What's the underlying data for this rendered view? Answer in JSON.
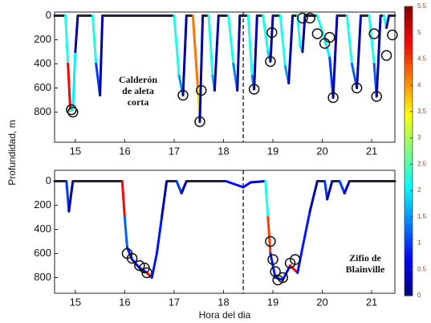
{
  "chart_data": [
    {
      "type": "line",
      "y_label": "Profundidad, m",
      "colormap": "jet",
      "xlim": [
        14.58,
        21.47
      ],
      "xticks": [
        15,
        16,
        17,
        18,
        19,
        20,
        21
      ],
      "ylim": [
        -30,
        1050
      ],
      "yticks": [
        0,
        200,
        400,
        600,
        800
      ],
      "y_inverted": true,
      "vlines": [
        18.4
      ],
      "annotation": [
        "Calderón",
        "de aleta",
        "corta"
      ],
      "x": [
        14.58,
        14.8,
        14.85,
        14.9,
        14.95,
        15.0,
        15.05,
        15.35,
        15.42,
        15.5,
        15.55,
        17.0,
        17.1,
        17.18,
        17.25,
        17.38,
        17.48,
        17.52,
        17.58,
        17.7,
        17.78,
        17.82,
        17.9,
        18.1,
        18.2,
        18.28,
        18.33,
        18.5,
        18.58,
        18.62,
        18.68,
        18.8,
        18.9,
        18.95,
        19.0,
        19.15,
        19.25,
        19.32,
        19.4,
        19.5,
        19.55,
        19.6,
        19.65,
        19.9,
        20.05,
        20.15,
        20.22,
        20.3,
        20.5,
        20.6,
        20.7,
        20.78,
        20.95,
        21.05,
        21.1,
        21.18,
        21.25,
        21.3,
        21.35,
        21.47
      ],
      "values": [
        0,
        0,
        400,
        790,
        780,
        300,
        0,
        0,
        400,
        660,
        0,
        0,
        500,
        660,
        0,
        0,
        600,
        880,
        0,
        0,
        500,
        620,
        0,
        0,
        400,
        620,
        0,
        0,
        500,
        610,
        0,
        0,
        300,
        380,
        0,
        0,
        420,
        560,
        0,
        0,
        250,
        300,
        0,
        0,
        200,
        350,
        680,
        0,
        0,
        400,
        600,
        0,
        0,
        400,
        670,
        0,
        0,
        100,
        0,
        0
      ],
      "color_values": [
        0.2,
        0.2,
        2.2,
        4.8,
        2.5,
        2.0,
        0.2,
        0.2,
        2.2,
        1.0,
        0.2,
        0.2,
        2.2,
        1.5,
        0.2,
        0.2,
        4.2,
        3.6,
        0.2,
        0.2,
        2.2,
        1.6,
        0.2,
        0.2,
        2.2,
        1.4,
        0.2,
        0.2,
        2.2,
        1.4,
        0.2,
        0.2,
        2.2,
        1.8,
        0.2,
        0.2,
        2.2,
        1.5,
        0.2,
        0.2,
        2.2,
        2.0,
        0.2,
        0.2,
        2.2,
        2.0,
        1.0,
        0.2,
        0.2,
        2.2,
        1.2,
        0.2,
        0.2,
        2.2,
        1.2,
        0.2,
        0.2,
        2.2,
        0.2,
        0.2
      ],
      "markers": {
        "x": [
          14.92,
          14.95,
          17.18,
          17.52,
          17.55,
          18.62,
          18.95,
          18.98,
          19.6,
          19.75,
          19.9,
          20.05,
          20.15,
          20.22,
          20.7,
          21.05,
          21.1,
          21.3,
          21.42
        ],
        "values": [
          780,
          800,
          660,
          880,
          620,
          610,
          380,
          140,
          20,
          20,
          150,
          230,
          180,
          680,
          600,
          150,
          670,
          330,
          160
        ]
      }
    },
    {
      "type": "line",
      "x_label": "Hora del dia",
      "colormap": "jet",
      "xlim": [
        14.58,
        21.47
      ],
      "xticks": [
        15,
        16,
        17,
        18,
        19,
        20,
        21
      ],
      "ylim": [
        -90,
        930
      ],
      "yticks": [
        0,
        200,
        400,
        600,
        800
      ],
      "y_inverted": true,
      "vlines": [
        18.4
      ],
      "annotation": [
        "Zifio de",
        "Blainville"
      ],
      "x": [
        14.58,
        14.82,
        14.87,
        14.95,
        15.95,
        16.0,
        16.05,
        16.15,
        16.3,
        16.45,
        16.55,
        16.65,
        16.75,
        16.85,
        17.05,
        17.15,
        17.25,
        18.05,
        18.4,
        18.55,
        18.85,
        18.9,
        18.95,
        19.05,
        19.2,
        19.35,
        19.5,
        19.6,
        19.75,
        19.9,
        20.05,
        20.1,
        20.2,
        20.35,
        20.45,
        20.55,
        21.47
      ],
      "values": [
        0,
        0,
        250,
        0,
        0,
        300,
        550,
        650,
        720,
        760,
        800,
        600,
        300,
        0,
        0,
        100,
        0,
        0,
        50,
        10,
        0,
        300,
        600,
        800,
        820,
        700,
        760,
        550,
        250,
        0,
        0,
        150,
        0,
        0,
        100,
        0,
        0
      ],
      "color_values": [
        0.2,
        0.2,
        1.0,
        0.2,
        0.2,
        4.8,
        1.2,
        0.8,
        0.6,
        0.6,
        4.8,
        0.8,
        0.8,
        0.2,
        0.2,
        1.0,
        0.2,
        0.2,
        0.6,
        0.6,
        0.2,
        2.2,
        4.5,
        0.8,
        0.6,
        0.6,
        4.8,
        0.8,
        0.8,
        0.2,
        0.2,
        1.0,
        0.2,
        0.2,
        1.0,
        0.2,
        0.2
      ],
      "markers": {
        "x": [
          16.05,
          16.15,
          16.3,
          16.4,
          16.45,
          18.95,
          19.0,
          19.05,
          19.1,
          19.2,
          19.35,
          19.45
        ],
        "values": [
          600,
          640,
          700,
          720,
          760,
          500,
          650,
          750,
          820,
          800,
          680,
          650
        ]
      }
    },
    {
      "type": "colorbar",
      "colormap": "jet",
      "clim": [
        0,
        5.5
      ],
      "ticks": [
        0,
        0.5,
        1,
        1.5,
        2,
        2.5,
        3,
        3.5,
        4,
        4.5,
        5,
        5.5
      ]
    }
  ]
}
